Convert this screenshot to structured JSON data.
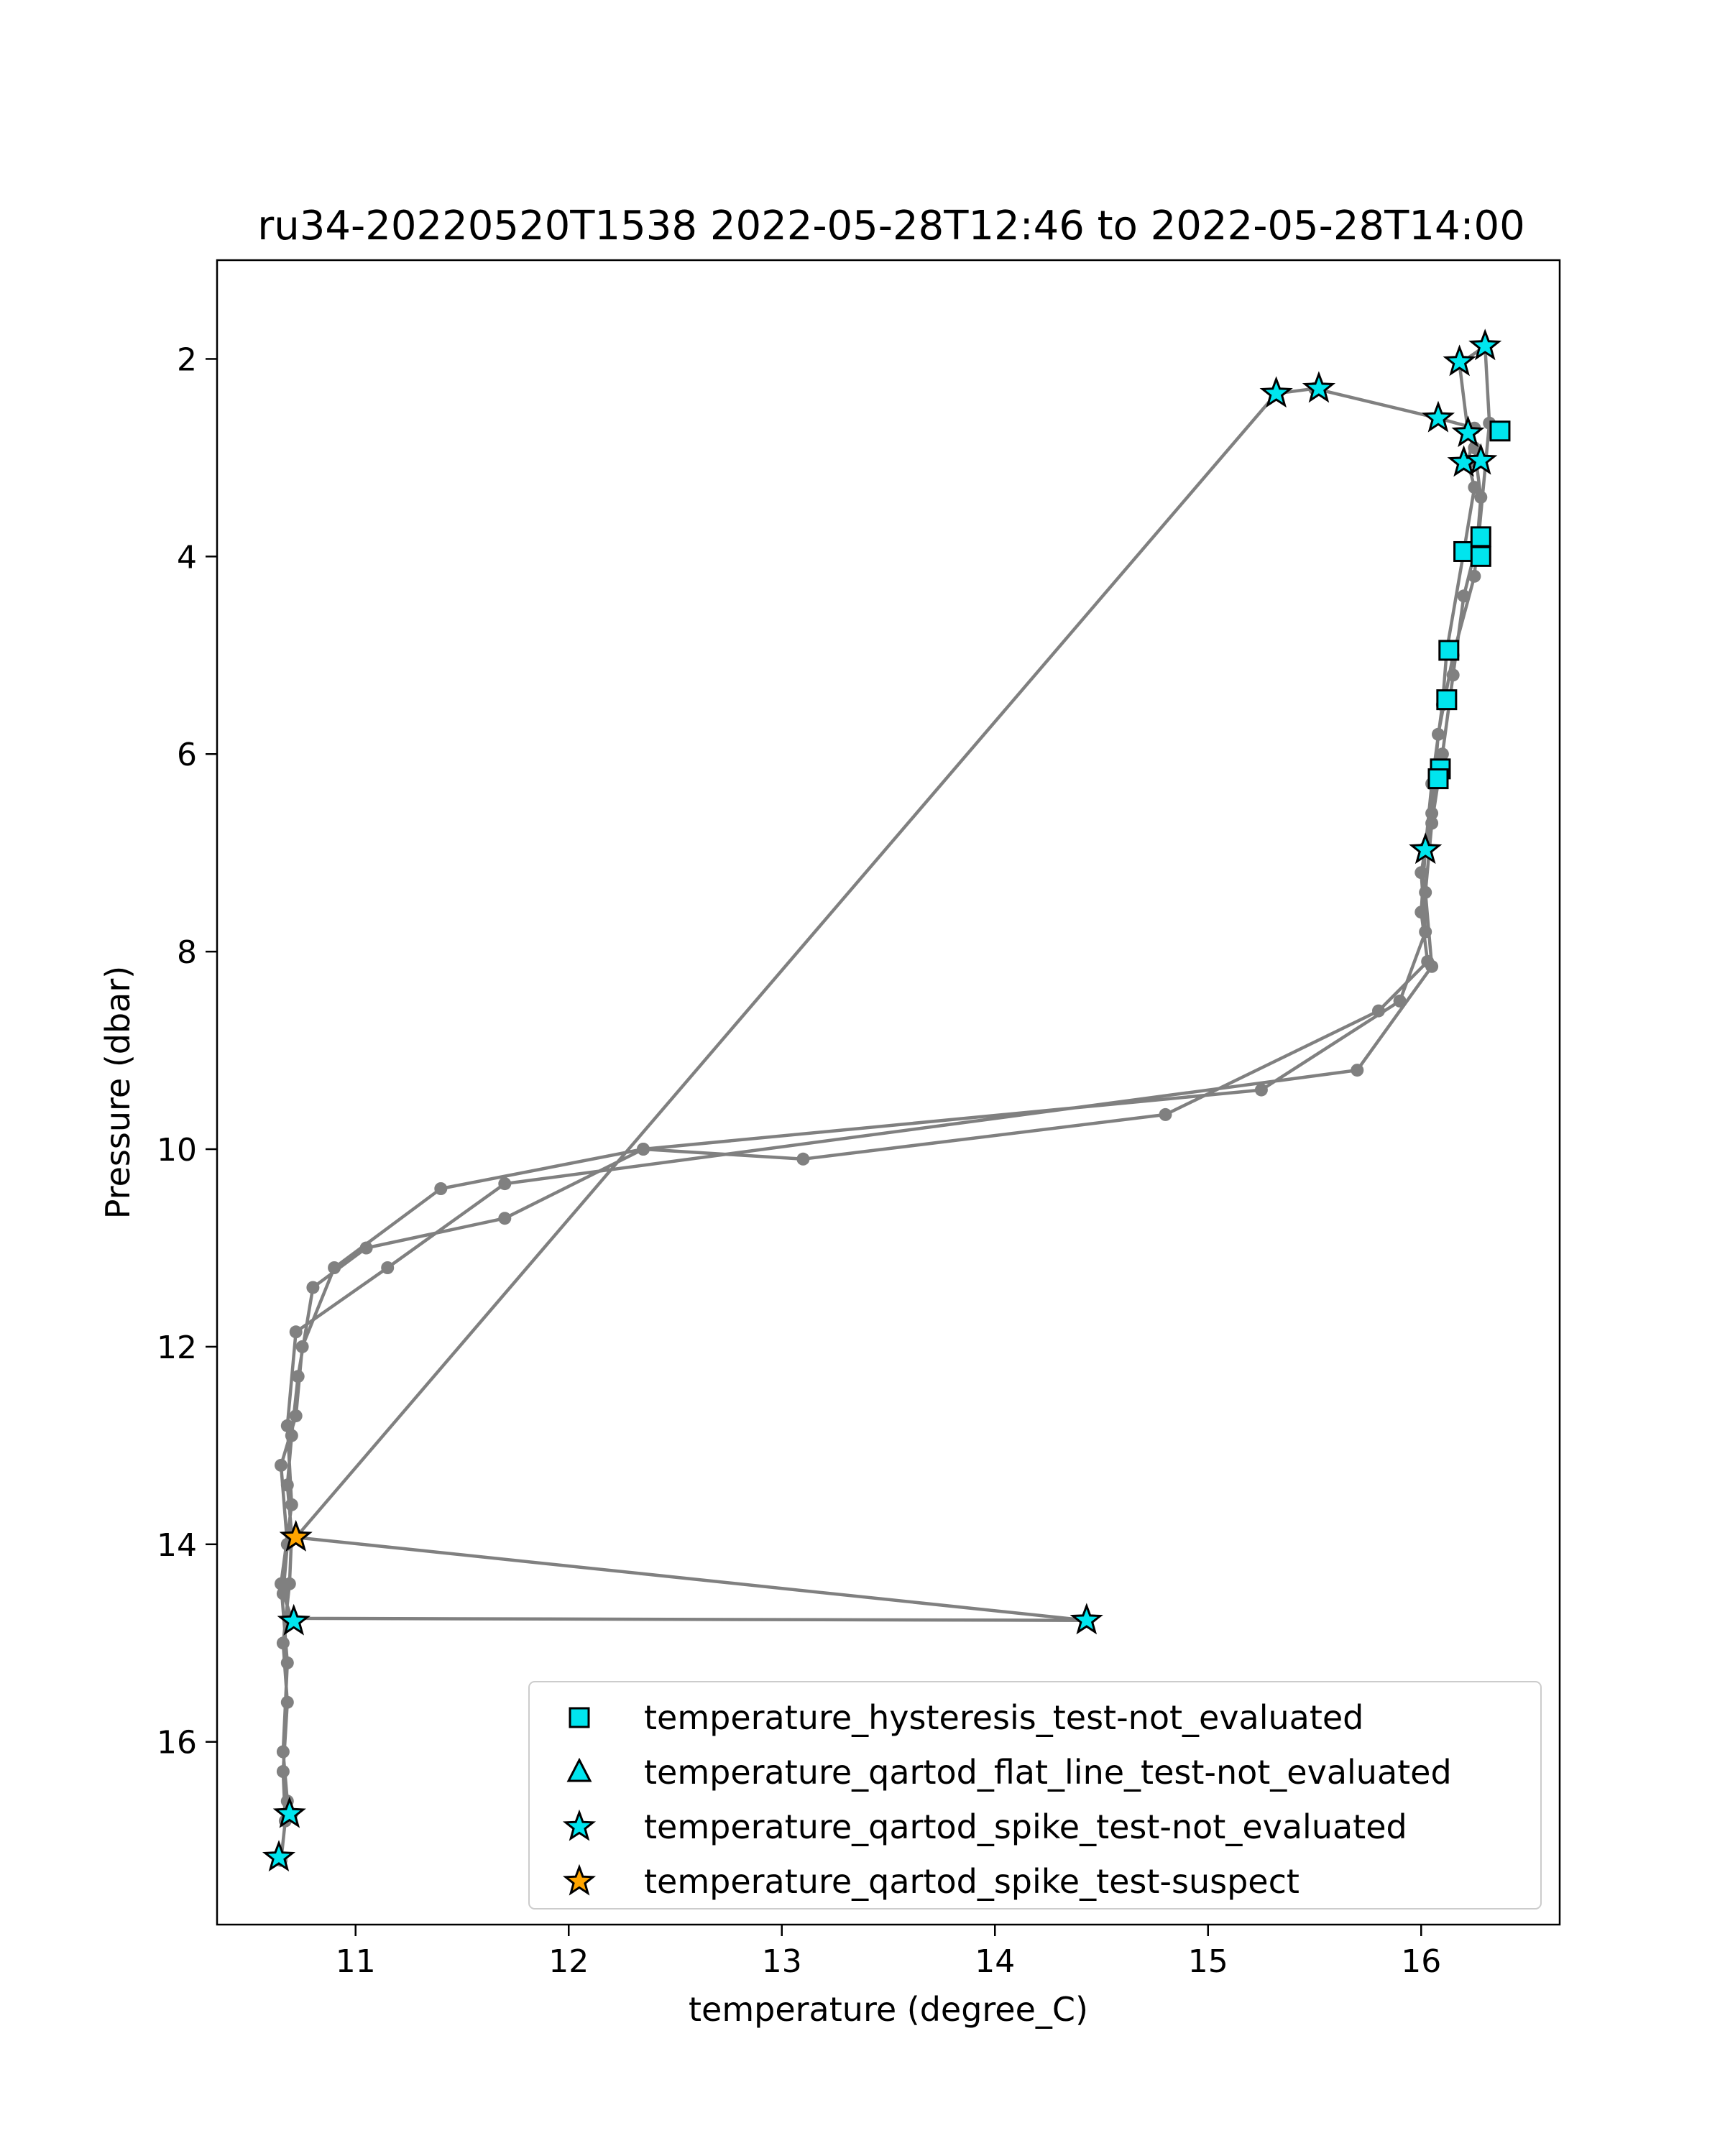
{
  "chart_data": {
    "type": "scatter",
    "title": "ru34-20220520T1538 2022-05-28T12:46 to 2022-05-28T14:00",
    "xlabel": "temperature (degree_C)",
    "ylabel": "Pressure (dbar)",
    "xlim": [
      10.35,
      16.65
    ],
    "ylim": [
      17.85,
      1.0
    ],
    "y_inverted": true,
    "xticks": [
      11,
      12,
      13,
      14,
      15,
      16
    ],
    "yticks": [
      2,
      4,
      6,
      8,
      10,
      12,
      14,
      16
    ],
    "grid": false,
    "legend_position": "lower-right",
    "profile_color": "#808080",
    "profile": [
      [
        10.65,
        17.2
      ],
      [
        10.67,
        16.8
      ],
      [
        10.66,
        16.3
      ],
      [
        10.68,
        15.6
      ],
      [
        10.66,
        15.0
      ],
      [
        10.69,
        14.4
      ],
      [
        10.7,
        13.9
      ],
      [
        10.68,
        13.4
      ],
      [
        10.7,
        12.9
      ],
      [
        10.73,
        12.3
      ],
      [
        10.8,
        11.4
      ],
      [
        11.05,
        11.0
      ],
      [
        11.7,
        10.7
      ],
      [
        12.35,
        10.0
      ],
      [
        13.1,
        10.1
      ],
      [
        14.8,
        9.65
      ],
      [
        15.8,
        8.6
      ],
      [
        16.03,
        8.1
      ],
      [
        16.0,
        7.6
      ],
      [
        16.02,
        6.95
      ],
      [
        16.05,
        6.3
      ],
      [
        16.1,
        5.5
      ],
      [
        16.12,
        4.95
      ],
      [
        16.2,
        3.95
      ],
      [
        16.25,
        3.3
      ],
      [
        16.22,
        3.05
      ],
      [
        16.25,
        2.7
      ],
      [
        16.08,
        2.6
      ],
      [
        15.5,
        2.3
      ],
      [
        15.32,
        2.35
      ],
      [
        10.72,
        13.93
      ],
      [
        14.43,
        14.77
      ],
      [
        10.7,
        14.75
      ],
      [
        10.66,
        14.5
      ],
      [
        10.68,
        14.0
      ],
      [
        10.65,
        13.2
      ],
      [
        10.72,
        12.7
      ],
      [
        10.75,
        12.0
      ],
      [
        10.9,
        11.2
      ],
      [
        11.4,
        10.4
      ],
      [
        12.35,
        10.0
      ],
      [
        15.25,
        9.4
      ],
      [
        15.9,
        8.5
      ],
      [
        16.02,
        7.8
      ],
      [
        16.0,
        7.2
      ],
      [
        16.05,
        6.6
      ],
      [
        16.08,
        5.8
      ],
      [
        16.15,
        5.0
      ],
      [
        16.25,
        4.2
      ],
      [
        16.28,
        3.4
      ],
      [
        16.25,
        2.9
      ],
      [
        16.22,
        2.75
      ],
      [
        16.18,
        2.05
      ],
      [
        16.3,
        1.87
      ],
      [
        16.32,
        2.65
      ],
      [
        16.27,
        3.8
      ],
      [
        16.2,
        4.4
      ],
      [
        16.15,
        5.2
      ],
      [
        16.1,
        6.0
      ],
      [
        16.05,
        6.7
      ],
      [
        16.02,
        7.4
      ],
      [
        16.05,
        8.15
      ],
      [
        15.7,
        9.2
      ],
      [
        11.7,
        10.35
      ],
      [
        11.15,
        11.2
      ],
      [
        10.72,
        11.85
      ],
      [
        10.68,
        12.8
      ],
      [
        10.7,
        13.6
      ],
      [
        10.65,
        14.4
      ],
      [
        10.68,
        15.2
      ],
      [
        10.66,
        16.1
      ],
      [
        10.68,
        16.6
      ],
      [
        10.7,
        16.73
      ]
    ],
    "series": [
      {
        "name": "temperature_hysteresis_test-not_evaluated",
        "marker": "square",
        "color": "#00e5ee",
        "x": [
          16.37,
          16.2,
          16.28,
          16.28,
          16.13,
          16.12,
          16.09,
          16.08
        ],
        "y": [
          2.73,
          3.95,
          3.8,
          4.0,
          4.95,
          5.45,
          6.15,
          6.25
        ]
      },
      {
        "name": "temperature_qartod_flat_line_test-not_evaluated",
        "marker": "triangle",
        "color": "#00e5ee",
        "x": [],
        "y": []
      },
      {
        "name": "temperature_qartod_spike_test-not_evaluated",
        "marker": "star",
        "color": "#00e5ee",
        "x": [
          16.3,
          16.18,
          15.52,
          15.32,
          16.08,
          16.22,
          16.2,
          16.28,
          16.02,
          10.71,
          14.43,
          10.69,
          10.64
        ],
        "y": [
          1.87,
          2.03,
          2.3,
          2.35,
          2.6,
          2.75,
          3.05,
          3.03,
          6.97,
          14.78,
          14.77,
          16.73,
          17.17
        ]
      },
      {
        "name": "temperature_qartod_spike_test-suspect",
        "marker": "star",
        "color": "#ffa500",
        "x": [
          10.72
        ],
        "y": [
          13.93
        ]
      }
    ]
  }
}
